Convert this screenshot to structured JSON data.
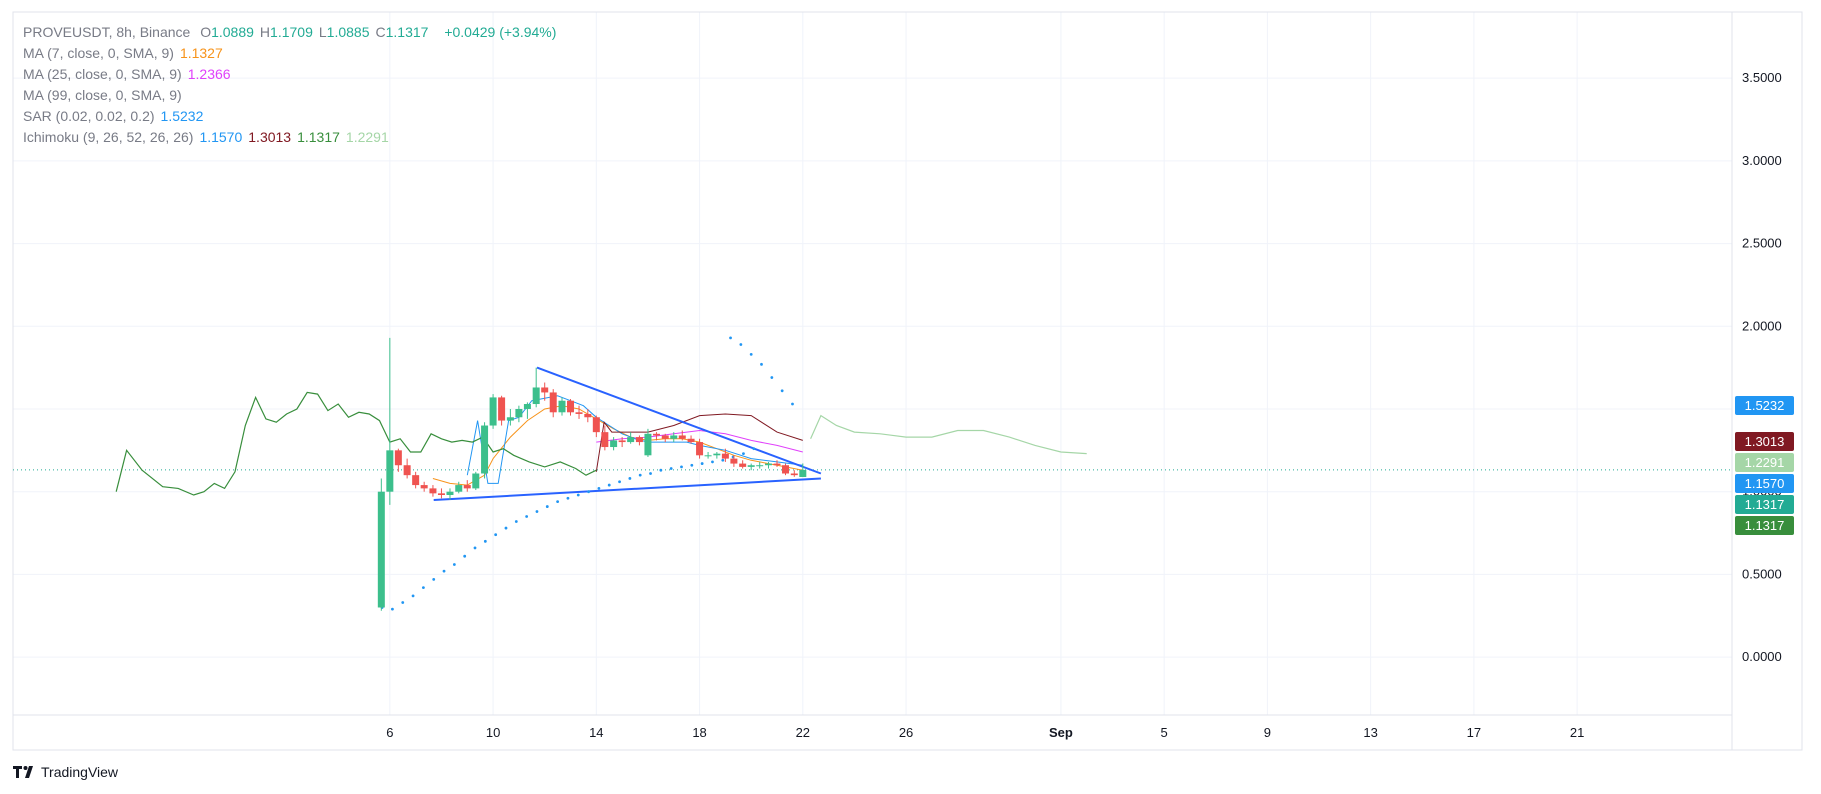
{
  "header": {
    "symbol": "PROVEUSDT, 8h, Binance",
    "ohlc": [
      {
        "k": "O",
        "v": "1.0889"
      },
      {
        "k": "H",
        "v": "1.1709"
      },
      {
        "k": "L",
        "v": "1.0885"
      },
      {
        "k": "C",
        "v": "1.1317"
      }
    ],
    "change": "+0.0429 (+3.94%)",
    "change_color": "#22ab94"
  },
  "indicators": [
    {
      "label": "MA (7, close, 0, SMA, 9)",
      "values": [
        {
          "v": "1.1327",
          "color": "#f7931a"
        }
      ]
    },
    {
      "label": "MA (25, close, 0, SMA, 9)",
      "values": [
        {
          "v": "1.2366",
          "color": "#e040fb"
        }
      ]
    },
    {
      "label": "MA (99, close, 0, SMA, 9)",
      "values": []
    },
    {
      "label": "SAR (0.02, 0.02, 0.2)",
      "values": [
        {
          "v": "1.5232",
          "color": "#2196f3"
        }
      ]
    },
    {
      "label": "Ichimoku (9, 26, 52, 26, 26)",
      "values": [
        {
          "v": "1.1570",
          "color": "#2196f3"
        },
        {
          "v": "1.3013",
          "color": "#801922"
        },
        {
          "v": "1.1317",
          "color": "#388e3c"
        },
        {
          "v": "1.2291",
          "color": "#a5d6a7"
        }
      ]
    }
  ],
  "price_tags": [
    {
      "v": "1.5232",
      "color": "#2196f3",
      "y": 1.5232
    },
    {
      "v": "1.3013",
      "color": "#801922",
      "y": 1.3013
    },
    {
      "v": "1.2291",
      "color": "#a5d6a7",
      "y": 1.2291
    },
    {
      "v": "1.1570",
      "color": "#2196f3",
      "y": 1.157
    },
    {
      "v": "1.1317",
      "color": "#22ab94",
      "y": 1.1317
    },
    {
      "v": "1.1317",
      "color": "#388e3c",
      "y": 1.1317
    }
  ],
  "brand": "TradingView",
  "chart_data": {
    "type": "candlestick",
    "title": "",
    "xlabel": "",
    "ylabel": "",
    "y_ticks": [
      "3.5000",
      "3.0000",
      "2.5000",
      "2.0000",
      "1.5000",
      "1.0000",
      "0.5000",
      "0.0000"
    ],
    "y_tick_values": [
      3.5,
      3.0,
      2.5,
      2.0,
      1.5,
      1.0,
      0.5,
      0.0
    ],
    "ylim": [
      -0.35,
      3.9
    ],
    "x_ticks": [
      "6",
      "10",
      "14",
      "18",
      "22",
      "26",
      "Sep",
      "5",
      "9",
      "13",
      "17",
      "21"
    ],
    "x_tick_days": [
      6,
      10,
      14,
      18,
      22,
      26,
      32,
      36,
      40,
      44,
      48,
      52
    ],
    "xlim": [
      -8.6,
      58.0
    ],
    "current_price": 1.1317,
    "grid": true,
    "candles": [
      {
        "t": 5.67,
        "o": 0.3,
        "h": 1.08,
        "l": 0.28,
        "c": 1.0
      },
      {
        "t": 6.0,
        "o": 1.0,
        "h": 1.93,
        "l": 0.92,
        "c": 1.25
      },
      {
        "t": 6.33,
        "o": 1.25,
        "h": 1.26,
        "l": 1.12,
        "c": 1.16
      },
      {
        "t": 6.67,
        "o": 1.16,
        "h": 1.2,
        "l": 1.08,
        "c": 1.1
      },
      {
        "t": 7.0,
        "o": 1.1,
        "h": 1.12,
        "l": 1.02,
        "c": 1.04
      },
      {
        "t": 7.33,
        "o": 1.04,
        "h": 1.06,
        "l": 1.0,
        "c": 1.02
      },
      {
        "t": 7.67,
        "o": 1.02,
        "h": 1.04,
        "l": 0.97,
        "c": 0.99
      },
      {
        "t": 8.0,
        "o": 0.99,
        "h": 1.02,
        "l": 0.96,
        "c": 0.98
      },
      {
        "t": 8.33,
        "o": 0.98,
        "h": 1.02,
        "l": 0.95,
        "c": 1.0
      },
      {
        "t": 8.67,
        "o": 1.0,
        "h": 1.06,
        "l": 0.99,
        "c": 1.04
      },
      {
        "t": 9.0,
        "o": 1.04,
        "h": 1.07,
        "l": 1.0,
        "c": 1.02
      },
      {
        "t": 9.33,
        "o": 1.02,
        "h": 1.12,
        "l": 1.01,
        "c": 1.11
      },
      {
        "t": 9.67,
        "o": 1.11,
        "h": 1.42,
        "l": 1.08,
        "c": 1.4
      },
      {
        "t": 10.0,
        "o": 1.4,
        "h": 1.59,
        "l": 1.38,
        "c": 1.57
      },
      {
        "t": 10.33,
        "o": 1.57,
        "h": 1.58,
        "l": 1.4,
        "c": 1.43
      },
      {
        "t": 10.67,
        "o": 1.43,
        "h": 1.5,
        "l": 1.4,
        "c": 1.45
      },
      {
        "t": 11.0,
        "o": 1.45,
        "h": 1.52,
        "l": 1.42,
        "c": 1.5
      },
      {
        "t": 11.33,
        "o": 1.5,
        "h": 1.54,
        "l": 1.44,
        "c": 1.53
      },
      {
        "t": 11.67,
        "o": 1.53,
        "h": 1.75,
        "l": 1.51,
        "c": 1.63
      },
      {
        "t": 12.0,
        "o": 1.63,
        "h": 1.66,
        "l": 1.55,
        "c": 1.6
      },
      {
        "t": 12.33,
        "o": 1.6,
        "h": 1.62,
        "l": 1.45,
        "c": 1.48
      },
      {
        "t": 12.67,
        "o": 1.48,
        "h": 1.57,
        "l": 1.46,
        "c": 1.55
      },
      {
        "t": 13.0,
        "o": 1.55,
        "h": 1.56,
        "l": 1.46,
        "c": 1.48
      },
      {
        "t": 13.33,
        "o": 1.48,
        "h": 1.52,
        "l": 1.44,
        "c": 1.47
      },
      {
        "t": 13.67,
        "o": 1.47,
        "h": 1.5,
        "l": 1.42,
        "c": 1.45
      },
      {
        "t": 14.0,
        "o": 1.45,
        "h": 1.46,
        "l": 1.33,
        "c": 1.36
      },
      {
        "t": 14.33,
        "o": 1.36,
        "h": 1.4,
        "l": 1.25,
        "c": 1.27
      },
      {
        "t": 14.67,
        "o": 1.27,
        "h": 1.33,
        "l": 1.25,
        "c": 1.31
      },
      {
        "t": 15.0,
        "o": 1.31,
        "h": 1.33,
        "l": 1.27,
        "c": 1.3
      },
      {
        "t": 15.33,
        "o": 1.3,
        "h": 1.36,
        "l": 1.29,
        "c": 1.33
      },
      {
        "t": 15.67,
        "o": 1.33,
        "h": 1.34,
        "l": 1.28,
        "c": 1.3
      },
      {
        "t": 16.0,
        "o": 1.22,
        "h": 1.38,
        "l": 1.21,
        "c": 1.35
      },
      {
        "t": 16.33,
        "o": 1.35,
        "h": 1.36,
        "l": 1.31,
        "c": 1.34
      },
      {
        "t": 16.67,
        "o": 1.34,
        "h": 1.35,
        "l": 1.3,
        "c": 1.32
      },
      {
        "t": 17.0,
        "o": 1.32,
        "h": 1.36,
        "l": 1.3,
        "c": 1.34
      },
      {
        "t": 17.33,
        "o": 1.34,
        "h": 1.37,
        "l": 1.31,
        "c": 1.32
      },
      {
        "t": 17.67,
        "o": 1.32,
        "h": 1.34,
        "l": 1.29,
        "c": 1.3
      },
      {
        "t": 18.0,
        "o": 1.3,
        "h": 1.32,
        "l": 1.2,
        "c": 1.22
      },
      {
        "t": 18.33,
        "o": 1.22,
        "h": 1.24,
        "l": 1.2,
        "c": 1.22
      },
      {
        "t": 18.67,
        "o": 1.22,
        "h": 1.24,
        "l": 1.2,
        "c": 1.23
      },
      {
        "t": 19.0,
        "o": 1.23,
        "h": 1.26,
        "l": 1.18,
        "c": 1.2
      },
      {
        "t": 19.33,
        "o": 1.2,
        "h": 1.22,
        "l": 1.15,
        "c": 1.17
      },
      {
        "t": 19.67,
        "o": 1.17,
        "h": 1.19,
        "l": 1.14,
        "c": 1.15
      },
      {
        "t": 20.0,
        "o": 1.15,
        "h": 1.17,
        "l": 1.13,
        "c": 1.16
      },
      {
        "t": 20.33,
        "o": 1.16,
        "h": 1.18,
        "l": 1.14,
        "c": 1.16
      },
      {
        "t": 20.67,
        "o": 1.16,
        "h": 1.18,
        "l": 1.14,
        "c": 1.17
      },
      {
        "t": 21.0,
        "o": 1.17,
        "h": 1.19,
        "l": 1.15,
        "c": 1.16
      },
      {
        "t": 21.33,
        "o": 1.16,
        "h": 1.17,
        "l": 1.1,
        "c": 1.11
      },
      {
        "t": 21.67,
        "o": 1.11,
        "h": 1.13,
        "l": 1.09,
        "c": 1.1
      },
      {
        "t": 22.0,
        "o": 1.0889,
        "h": 1.1709,
        "l": 1.0885,
        "c": 1.1317
      }
    ],
    "series": [
      {
        "name": "MA 7",
        "color": "#f7931a",
        "width": 1,
        "points": [
          [
            7.67,
            1.08
          ],
          [
            8.33,
            1.05
          ],
          [
            9.0,
            1.04
          ],
          [
            9.67,
            1.1
          ],
          [
            10.0,
            1.2
          ],
          [
            10.67,
            1.33
          ],
          [
            11.33,
            1.43
          ],
          [
            12.0,
            1.5
          ],
          [
            12.67,
            1.52
          ],
          [
            13.33,
            1.5
          ],
          [
            14.0,
            1.44
          ],
          [
            14.67,
            1.38
          ],
          [
            15.33,
            1.33
          ],
          [
            16.0,
            1.31
          ],
          [
            16.67,
            1.32
          ],
          [
            17.33,
            1.32
          ],
          [
            18.0,
            1.3
          ],
          [
            18.67,
            1.26
          ],
          [
            19.33,
            1.22
          ],
          [
            20.0,
            1.19
          ],
          [
            20.67,
            1.17
          ],
          [
            21.33,
            1.15
          ],
          [
            22.0,
            1.13
          ]
        ]
      },
      {
        "name": "MA 25",
        "color": "#e040fb",
        "width": 1,
        "points": [
          [
            14.0,
            1.3
          ],
          [
            15.0,
            1.32
          ],
          [
            16.0,
            1.33
          ],
          [
            17.0,
            1.35
          ],
          [
            18.0,
            1.37
          ],
          [
            19.0,
            1.35
          ],
          [
            20.0,
            1.31
          ],
          [
            21.0,
            1.28
          ],
          [
            22.0,
            1.24
          ]
        ]
      },
      {
        "name": "Ichimoku Conversion",
        "color": "#2196f3",
        "width": 1,
        "points": [
          [
            9.0,
            1.1
          ],
          [
            9.4,
            1.43
          ],
          [
            9.8,
            1.05
          ],
          [
            10.2,
            1.05
          ],
          [
            10.6,
            1.43
          ],
          [
            11.0,
            1.45
          ],
          [
            11.5,
            1.55
          ],
          [
            12.5,
            1.58
          ],
          [
            13.0,
            1.55
          ],
          [
            13.5,
            1.52
          ],
          [
            14.0,
            1.45
          ],
          [
            14.5,
            1.4
          ],
          [
            15.0,
            1.35
          ],
          [
            15.5,
            1.32
          ],
          [
            16.0,
            1.3
          ],
          [
            17.0,
            1.3
          ],
          [
            17.5,
            1.3
          ],
          [
            18.0,
            1.28
          ],
          [
            19.0,
            1.25
          ],
          [
            20.0,
            1.2
          ],
          [
            21.0,
            1.18
          ],
          [
            22.0,
            1.16
          ]
        ]
      },
      {
        "name": "Ichimoku Base",
        "color": "#801922",
        "width": 1,
        "points": [
          [
            14.0,
            1.12
          ],
          [
            14.3,
            1.42
          ],
          [
            14.6,
            1.36
          ],
          [
            15.0,
            1.36
          ],
          [
            16.0,
            1.36
          ],
          [
            17.0,
            1.4
          ],
          [
            18.0,
            1.46
          ],
          [
            19.0,
            1.47
          ],
          [
            20.0,
            1.46
          ],
          [
            21.0,
            1.36
          ],
          [
            22.0,
            1.31
          ]
        ]
      },
      {
        "name": "Ichimoku Lagging",
        "color": "#388e3c",
        "width": 1.2,
        "points": [
          [
            -4.6,
            1.0
          ],
          [
            -4.2,
            1.25
          ],
          [
            -3.6,
            1.13
          ],
          [
            -2.8,
            1.03
          ],
          [
            -2.2,
            1.02
          ],
          [
            -1.6,
            0.98
          ],
          [
            -1.2,
            1.0
          ],
          [
            -0.8,
            1.05
          ],
          [
            -0.4,
            1.02
          ],
          [
            0.0,
            1.12
          ],
          [
            0.4,
            1.4
          ],
          [
            0.8,
            1.57
          ],
          [
            1.2,
            1.44
          ],
          [
            1.6,
            1.42
          ],
          [
            2.0,
            1.47
          ],
          [
            2.4,
            1.5
          ],
          [
            2.8,
            1.6
          ],
          [
            3.2,
            1.59
          ],
          [
            3.6,
            1.49
          ],
          [
            4.0,
            1.53
          ],
          [
            4.4,
            1.45
          ],
          [
            4.8,
            1.48
          ],
          [
            5.2,
            1.47
          ],
          [
            5.6,
            1.43
          ],
          [
            6.0,
            1.3
          ],
          [
            6.4,
            1.32
          ],
          [
            6.8,
            1.24
          ],
          [
            7.2,
            1.24
          ],
          [
            7.6,
            1.35
          ],
          [
            8.0,
            1.32
          ],
          [
            8.4,
            1.3
          ],
          [
            8.8,
            1.31
          ],
          [
            9.2,
            1.3
          ],
          [
            9.6,
            1.33
          ],
          [
            10.0,
            1.24
          ],
          [
            10.4,
            1.26
          ],
          [
            10.8,
            1.22
          ],
          [
            11.4,
            1.18
          ],
          [
            12.0,
            1.15
          ],
          [
            12.6,
            1.18
          ],
          [
            13.2,
            1.14
          ],
          [
            13.6,
            1.1
          ],
          [
            14.0,
            1.13
          ]
        ]
      },
      {
        "name": "Ichimoku Lead",
        "color": "#a5d6a7",
        "width": 1.2,
        "points": [
          [
            22.3,
            1.32
          ],
          [
            22.7,
            1.46
          ],
          [
            23.3,
            1.4
          ],
          [
            24.0,
            1.36
          ],
          [
            25.0,
            1.35
          ],
          [
            26.0,
            1.33
          ],
          [
            27.0,
            1.33
          ],
          [
            28.0,
            1.37
          ],
          [
            29.0,
            1.37
          ],
          [
            30.0,
            1.33
          ],
          [
            31.0,
            1.28
          ],
          [
            32.0,
            1.24
          ],
          [
            33.0,
            1.23
          ]
        ]
      },
      {
        "name": "Triangle Upper",
        "color": "#2962ff",
        "width": 2,
        "points": [
          [
            11.7,
            1.75
          ],
          [
            22.7,
            1.11
          ]
        ]
      },
      {
        "name": "Triangle Lower",
        "color": "#2962ff",
        "width": 2,
        "points": [
          [
            7.7,
            0.95
          ],
          [
            22.7,
            1.08
          ]
        ]
      }
    ],
    "sar": {
      "name": "SAR",
      "color": "#2196f3",
      "points": [
        [
          5.7,
          0.3
        ],
        [
          6.1,
          0.29
        ],
        [
          6.5,
          0.33
        ],
        [
          6.9,
          0.37
        ],
        [
          7.3,
          0.42
        ],
        [
          7.7,
          0.47
        ],
        [
          8.1,
          0.52
        ],
        [
          8.5,
          0.56
        ],
        [
          8.9,
          0.61
        ],
        [
          9.3,
          0.66
        ],
        [
          9.7,
          0.7
        ],
        [
          10.1,
          0.74
        ],
        [
          10.5,
          0.78
        ],
        [
          10.9,
          0.82
        ],
        [
          11.3,
          0.85
        ],
        [
          11.7,
          0.88
        ],
        [
          12.1,
          0.91
        ],
        [
          12.5,
          0.94
        ],
        [
          12.9,
          0.96
        ],
        [
          13.3,
          0.98
        ],
        [
          13.7,
          1.0
        ],
        [
          14.1,
          1.02
        ],
        [
          14.5,
          1.04
        ],
        [
          14.9,
          1.06
        ],
        [
          15.3,
          1.08
        ],
        [
          15.7,
          1.1
        ],
        [
          16.1,
          1.11
        ],
        [
          16.5,
          1.13
        ],
        [
          16.9,
          1.14
        ],
        [
          17.3,
          1.15
        ],
        [
          17.7,
          1.16
        ],
        [
          18.1,
          1.17
        ],
        [
          18.5,
          1.18
        ],
        [
          18.9,
          1.19
        ],
        [
          19.3,
          1.21
        ],
        [
          19.7,
          1.23
        ],
        [
          20.1,
          1.26
        ],
        [
          19.2,
          1.93
        ],
        [
          19.6,
          1.89
        ],
        [
          20.0,
          1.83
        ],
        [
          20.4,
          1.77
        ],
        [
          20.8,
          1.69
        ],
        [
          21.2,
          1.61
        ],
        [
          21.6,
          1.53
        ]
      ]
    }
  }
}
